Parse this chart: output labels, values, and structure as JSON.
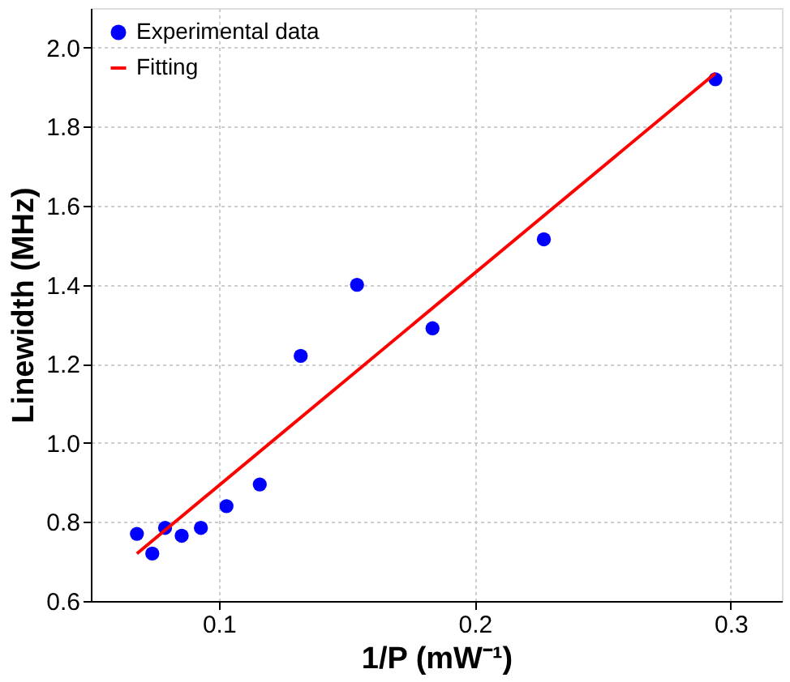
{
  "chart_data": {
    "type": "scatter",
    "xlabel": "1/P (mW⁻¹)",
    "ylabel": "Linewidth (MHz)",
    "xlim": [
      0.05,
      0.32
    ],
    "xticks": [
      0.1,
      0.2,
      0.3
    ],
    "ylim": [
      0.6,
      2.1
    ],
    "yticks": [
      0.6,
      0.8,
      {
        "value": 1,
        "label": "1.0"
      },
      1.2,
      1.4,
      1.6,
      1.8,
      {
        "value": 2,
        "label": "2.0"
      }
    ],
    "grid": true,
    "legend": "top left",
    "series": [
      {
        "name": "Experimental data",
        "type": "scatter",
        "color": "#0000ff",
        "marker": "circle",
        "x": [
          0.068,
          0.074,
          0.079,
          0.0855,
          0.093,
          0.103,
          0.116,
          0.132,
          0.154,
          0.1835,
          0.227,
          0.294
        ],
        "values": [
          0.77,
          0.72,
          0.785,
          0.765,
          0.785,
          0.84,
          0.895,
          1.22,
          1.4,
          1.29,
          1.515,
          1.92
        ]
      },
      {
        "name": "Fitting",
        "type": "line",
        "color": "#ff0000",
        "line_style": "solid",
        "x": [
          0.068,
          0.294
        ],
        "values": [
          0.72,
          1.935
        ]
      }
    ]
  }
}
